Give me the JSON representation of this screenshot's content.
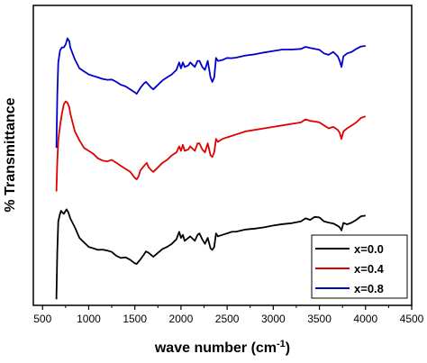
{
  "chart_data": {
    "type": "line",
    "title": "",
    "xlabel": "wave number (cm",
    "xlabel_superscript": "-1",
    "xlabel_suffix": ")",
    "ylabel": "% Transmittance",
    "xlim": [
      400,
      4500
    ],
    "ylim": [
      0,
      100
    ],
    "x_ticks": [
      500,
      1000,
      1500,
      2000,
      2500,
      3000,
      3500,
      4000,
      4500
    ],
    "x_tick_labels": [
      "500",
      "1000",
      "1500",
      "2000",
      "2500",
      "3000",
      "3500",
      "4000",
      "4500"
    ],
    "y_tick_labels_shown": false,
    "grid": false,
    "legend_position": "bottom-right",
    "series": [
      {
        "name": "x=0.0",
        "color": "#000000",
        "points": [
          [
            650,
            2
          ],
          [
            660,
            18
          ],
          [
            670,
            28
          ],
          [
            685,
            30
          ],
          [
            700,
            31.5
          ],
          [
            730,
            30.5
          ],
          [
            760,
            32
          ],
          [
            780,
            31
          ],
          [
            800,
            29
          ],
          [
            850,
            26
          ],
          [
            900,
            22.5
          ],
          [
            950,
            21
          ],
          [
            1000,
            19.5
          ],
          [
            1050,
            19
          ],
          [
            1100,
            18.5
          ],
          [
            1150,
            18.6
          ],
          [
            1200,
            18.3
          ],
          [
            1250,
            17.8
          ],
          [
            1300,
            16.5
          ],
          [
            1350,
            15.8
          ],
          [
            1400,
            16
          ],
          [
            1450,
            15.2
          ],
          [
            1500,
            14
          ],
          [
            1520,
            13.8
          ],
          [
            1560,
            15.3
          ],
          [
            1600,
            17
          ],
          [
            1620,
            18
          ],
          [
            1650,
            17.5
          ],
          [
            1700,
            16.2
          ],
          [
            1750,
            17.5
          ],
          [
            1800,
            18.8
          ],
          [
            1850,
            19.5
          ],
          [
            1900,
            20.5
          ],
          [
            1950,
            22
          ],
          [
            1980,
            24.5
          ],
          [
            2000,
            22.5
          ],
          [
            2020,
            23.5
          ],
          [
            2040,
            21.5
          ],
          [
            2080,
            22.5
          ],
          [
            2100,
            23
          ],
          [
            2150,
            21.5
          ],
          [
            2180,
            23.5
          ],
          [
            2200,
            24
          ],
          [
            2230,
            22
          ],
          [
            2260,
            20.5
          ],
          [
            2290,
            22.5
          ],
          [
            2320,
            19
          ],
          [
            2340,
            18.5
          ],
          [
            2360,
            19.5
          ],
          [
            2380,
            24
          ],
          [
            2400,
            23
          ],
          [
            2450,
            23.5
          ],
          [
            2500,
            24
          ],
          [
            2550,
            24.5
          ],
          [
            2600,
            24.6
          ],
          [
            2700,
            25.3
          ],
          [
            2800,
            25.6
          ],
          [
            2900,
            26
          ],
          [
            3000,
            26.6
          ],
          [
            3100,
            27.1
          ],
          [
            3200,
            27.4
          ],
          [
            3300,
            28
          ],
          [
            3350,
            29
          ],
          [
            3400,
            28.5
          ],
          [
            3450,
            29.5
          ],
          [
            3500,
            29.3
          ],
          [
            3550,
            28
          ],
          [
            3600,
            27.6
          ],
          [
            3650,
            27.3
          ],
          [
            3700,
            26.5
          ],
          [
            3720,
            26
          ],
          [
            3740,
            25
          ],
          [
            3760,
            27.5
          ],
          [
            3800,
            27
          ],
          [
            3850,
            27.6
          ],
          [
            3900,
            28.5
          ],
          [
            3950,
            29.7
          ],
          [
            4000,
            29.9
          ]
        ]
      },
      {
        "name": "x=0.4",
        "color": "#e00000",
        "points": [
          [
            650,
            38
          ],
          [
            660,
            48
          ],
          [
            670,
            55
          ],
          [
            690,
            60
          ],
          [
            710,
            64
          ],
          [
            730,
            67
          ],
          [
            750,
            68
          ],
          [
            770,
            67.5
          ],
          [
            790,
            66
          ],
          [
            800,
            64
          ],
          [
            850,
            58
          ],
          [
            900,
            55
          ],
          [
            950,
            52.5
          ],
          [
            1000,
            51.5
          ],
          [
            1050,
            50.5
          ],
          [
            1100,
            49
          ],
          [
            1150,
            48.3
          ],
          [
            1200,
            48
          ],
          [
            1250,
            48.5
          ],
          [
            1300,
            47.5
          ],
          [
            1350,
            46.5
          ],
          [
            1400,
            45.5
          ],
          [
            1450,
            44.5
          ],
          [
            1500,
            42.5
          ],
          [
            1520,
            42
          ],
          [
            1540,
            43
          ],
          [
            1560,
            45
          ],
          [
            1600,
            46.5
          ],
          [
            1630,
            47.5
          ],
          [
            1650,
            46
          ],
          [
            1680,
            45
          ],
          [
            1700,
            44.5
          ],
          [
            1750,
            46
          ],
          [
            1800,
            47.5
          ],
          [
            1850,
            48.5
          ],
          [
            1900,
            50
          ],
          [
            1950,
            51
          ],
          [
            1980,
            53
          ],
          [
            2000,
            51.5
          ],
          [
            2020,
            53.5
          ],
          [
            2040,
            51.5
          ],
          [
            2080,
            52
          ],
          [
            2100,
            53
          ],
          [
            2150,
            51.5
          ],
          [
            2180,
            54
          ],
          [
            2200,
            54
          ],
          [
            2230,
            52
          ],
          [
            2260,
            51
          ],
          [
            2290,
            54
          ],
          [
            2320,
            50
          ],
          [
            2340,
            49.5
          ],
          [
            2360,
            51
          ],
          [
            2380,
            55.5
          ],
          [
            2400,
            54.5
          ],
          [
            2450,
            55.5
          ],
          [
            2500,
            56
          ],
          [
            2550,
            56.5
          ],
          [
            2600,
            57
          ],
          [
            2700,
            58
          ],
          [
            2800,
            58.5
          ],
          [
            2900,
            59
          ],
          [
            3000,
            59.5
          ],
          [
            3100,
            60
          ],
          [
            3200,
            60.5
          ],
          [
            3300,
            61
          ],
          [
            3350,
            62
          ],
          [
            3400,
            61.5
          ],
          [
            3450,
            61.3
          ],
          [
            3500,
            61
          ],
          [
            3550,
            60
          ],
          [
            3600,
            59
          ],
          [
            3650,
            59.5
          ],
          [
            3700,
            58.5
          ],
          [
            3720,
            57.5
          ],
          [
            3740,
            55.5
          ],
          [
            3760,
            58
          ],
          [
            3800,
            59
          ],
          [
            3850,
            60
          ],
          [
            3900,
            61
          ],
          [
            3950,
            62.5
          ],
          [
            4000,
            63
          ]
        ]
      },
      {
        "name": "x=0.8",
        "color": "#0000cc",
        "points": [
          [
            650,
            52.5
          ],
          [
            660,
            70
          ],
          [
            670,
            81
          ],
          [
            690,
            85
          ],
          [
            710,
            86
          ],
          [
            730,
            86
          ],
          [
            750,
            87
          ],
          [
            770,
            89
          ],
          [
            790,
            88
          ],
          [
            800,
            86
          ],
          [
            850,
            82
          ],
          [
            900,
            79
          ],
          [
            950,
            78
          ],
          [
            1000,
            77
          ],
          [
            1050,
            76.5
          ],
          [
            1100,
            76
          ],
          [
            1150,
            75.5
          ],
          [
            1200,
            75.2
          ],
          [
            1250,
            75.3
          ],
          [
            1300,
            74.5
          ],
          [
            1350,
            73.5
          ],
          [
            1400,
            73
          ],
          [
            1450,
            72
          ],
          [
            1500,
            71
          ],
          [
            1520,
            70.5
          ],
          [
            1540,
            71.5
          ],
          [
            1560,
            72.5
          ],
          [
            1600,
            74
          ],
          [
            1620,
            74.5
          ],
          [
            1650,
            73.5
          ],
          [
            1680,
            72.5
          ],
          [
            1700,
            72
          ],
          [
            1750,
            73.5
          ],
          [
            1800,
            75
          ],
          [
            1850,
            76
          ],
          [
            1900,
            77
          ],
          [
            1950,
            78.5
          ],
          [
            1980,
            81
          ],
          [
            2000,
            79
          ],
          [
            2020,
            81
          ],
          [
            2040,
            79.5
          ],
          [
            2080,
            80
          ],
          [
            2100,
            81
          ],
          [
            2150,
            79.5
          ],
          [
            2180,
            81.5
          ],
          [
            2200,
            81.5
          ],
          [
            2230,
            79.5
          ],
          [
            2260,
            78.5
          ],
          [
            2290,
            81.5
          ],
          [
            2320,
            76
          ],
          [
            2340,
            74.5
          ],
          [
            2360,
            76
          ],
          [
            2380,
            82.5
          ],
          [
            2400,
            81.5
          ],
          [
            2450,
            81.8
          ],
          [
            2500,
            82.5
          ],
          [
            2550,
            82.4
          ],
          [
            2600,
            82.6
          ],
          [
            2700,
            83.3
          ],
          [
            2800,
            83.7
          ],
          [
            2900,
            84.3
          ],
          [
            3000,
            84.8
          ],
          [
            3100,
            85.3
          ],
          [
            3200,
            85.3
          ],
          [
            3300,
            85.5
          ],
          [
            3350,
            86.2
          ],
          [
            3400,
            85.8
          ],
          [
            3450,
            85.5
          ],
          [
            3500,
            85.2
          ],
          [
            3550,
            84
          ],
          [
            3600,
            83.5
          ],
          [
            3650,
            84.5
          ],
          [
            3700,
            83
          ],
          [
            3720,
            81.5
          ],
          [
            3740,
            79.5
          ],
          [
            3760,
            83
          ],
          [
            3800,
            84
          ],
          [
            3850,
            84.5
          ],
          [
            3900,
            85.5
          ],
          [
            3950,
            86.3
          ],
          [
            4000,
            86.5
          ]
        ]
      }
    ]
  }
}
